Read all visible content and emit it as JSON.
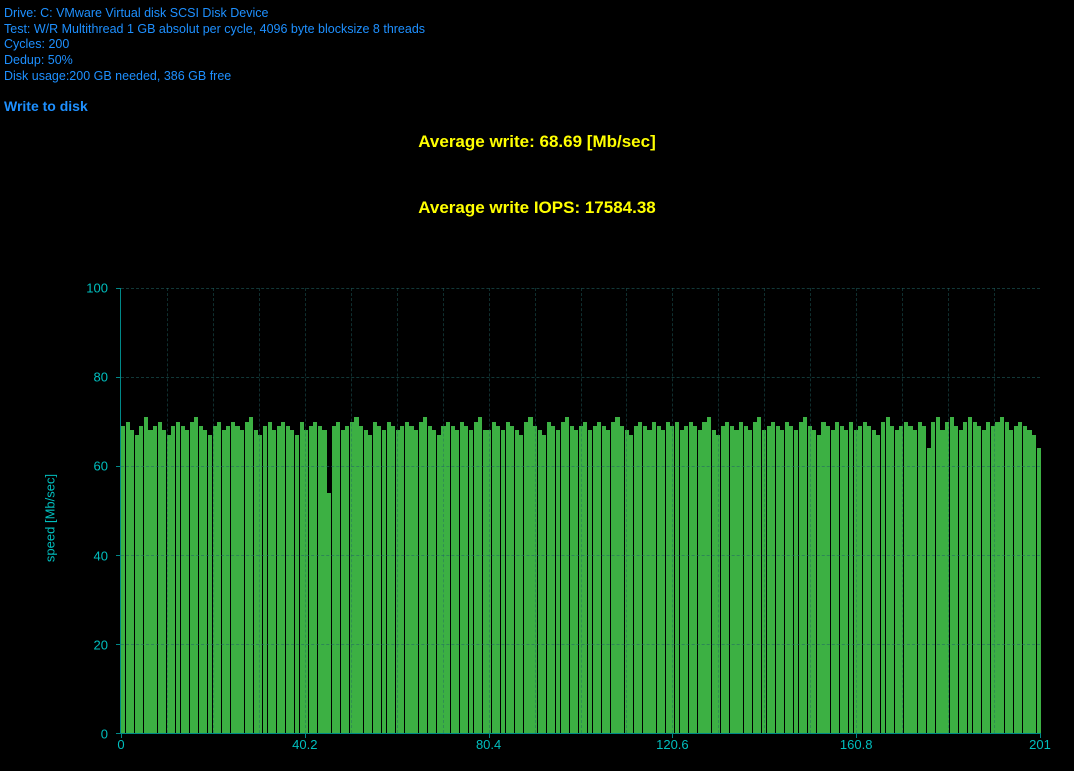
{
  "info": {
    "drive": "Drive: C: VMware Virtual disk SCSI Disk Device",
    "test": "Test: W/R Multithread 1 GB absolut per cycle, 4096 byte blocksize 8 threads",
    "cycles": "Cycles: 200",
    "dedup": "Dedup: 50%",
    "disk_usage": "Disk usage:200 GB needed, 386 GB free"
  },
  "section_title": "Write to disk",
  "metrics": {
    "avg_write": "Average write: 68.69 [Mb/sec]",
    "avg_iops": "Average write IOPS: 17584.38"
  },
  "chart": {
    "type": "bar",
    "ylabel": "speed [Mb/sec]",
    "ylim": [
      0,
      100
    ],
    "yticks": [
      0,
      20,
      40,
      60,
      80,
      100
    ],
    "xlim": [
      0,
      201
    ],
    "xticks": [
      0,
      40.2,
      80.4,
      120.6,
      160.8,
      201
    ],
    "bar_color": "#3cb043",
    "axis_color": "#00bfbf",
    "grid_color": "#226666",
    "background_color": "#000000",
    "minor_x_count": 20,
    "values": [
      69,
      70,
      68,
      67,
      69,
      71,
      68,
      69,
      70,
      68,
      67,
      69,
      70,
      69,
      68,
      70,
      71,
      69,
      68,
      67,
      69,
      70,
      68,
      69,
      70,
      69,
      68,
      70,
      71,
      68,
      67,
      69,
      70,
      68,
      69,
      70,
      69,
      68,
      67,
      70,
      68,
      69,
      70,
      69,
      68,
      54,
      69,
      70,
      68,
      69,
      70,
      71,
      69,
      68,
      67,
      70,
      69,
      68,
      70,
      69,
      68,
      69,
      70,
      69,
      68,
      70,
      71,
      69,
      68,
      67,
      69,
      70,
      69,
      68,
      70,
      69,
      68,
      70,
      71,
      68,
      68,
      70,
      69,
      68,
      70,
      69,
      68,
      67,
      70,
      71,
      69,
      68,
      67,
      70,
      69,
      68,
      70,
      71,
      69,
      68,
      69,
      70,
      68,
      69,
      70,
      69,
      68,
      70,
      71,
      69,
      68,
      67,
      69,
      70,
      69,
      68,
      70,
      69,
      68,
      70,
      69,
      70,
      68,
      69,
      70,
      69,
      68,
      70,
      71,
      68,
      67,
      69,
      70,
      69,
      68,
      70,
      69,
      68,
      70,
      71,
      68,
      69,
      70,
      69,
      68,
      70,
      69,
      68,
      70,
      71,
      69,
      68,
      67,
      70,
      69,
      68,
      70,
      69,
      68,
      70,
      68,
      69,
      70,
      69,
      68,
      67,
      70,
      71,
      69,
      68,
      69,
      70,
      69,
      68,
      70,
      69,
      64,
      70,
      71,
      68,
      70,
      71,
      69,
      68,
      70,
      71,
      70,
      69,
      68,
      70,
      69,
      70,
      71,
      70,
      68,
      69,
      70,
      69,
      68,
      67,
      64
    ]
  }
}
